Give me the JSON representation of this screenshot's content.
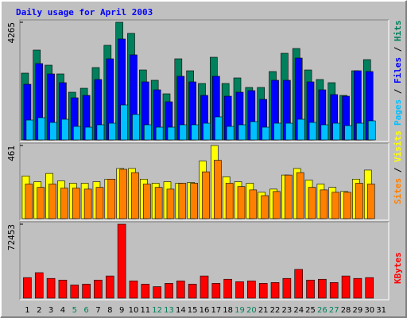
{
  "title": "Daily usage for April 2003",
  "legend_separator": " / ",
  "chart_data": [
    {
      "type": "bar",
      "series": [
        {
          "name": "Hits",
          "color": "#00805c",
          "values": [
            2421,
            3257,
            2709,
            2392,
            1729,
            1873,
            2623,
            3430,
            4265,
            3862,
            2536,
            2162,
            1672,
            2940,
            2507,
            2046,
            2997,
            2046,
            2248,
            1902,
            1902,
            2479,
            3141,
            3314,
            2536,
            2190,
            2075,
            1614,
            2507,
            2911,
            null
          ]
        },
        {
          "name": "Files",
          "color": "#0000ff",
          "values": [
            2017,
            2767,
            2392,
            2075,
            1527,
            1614,
            2190,
            2940,
            3660,
            3084,
            2104,
            1816,
            1383,
            2306,
            2104,
            1614,
            2306,
            1585,
            1729,
            1787,
            1470,
            2162,
            2162,
            2968,
            2104,
            1816,
            1643,
            1585,
            2507,
            2479,
            null
          ]
        },
        {
          "name": "Pages",
          "color": "#00c0ff",
          "values": [
            720,
            807,
            634,
            749,
            490,
            461,
            548,
            605,
            1268,
            922,
            548,
            461,
            461,
            548,
            548,
            605,
            836,
            490,
            548,
            663,
            461,
            605,
            605,
            749,
            634,
            548,
            605,
            519,
            605,
            692,
            null
          ]
        }
      ],
      "ylim": [
        0,
        4265
      ],
      "yticks": [
        4265
      ]
    },
    {
      "type": "bar",
      "series": [
        {
          "name": "Visits",
          "color": "#ffff00",
          "values": [
            269,
            233,
            285,
            238,
            223,
            223,
            233,
            249,
            316,
            316,
            249,
            223,
            233,
            223,
            228,
            363,
            461,
            264,
            233,
            223,
            166,
            186,
            275,
            316,
            243,
            218,
            197,
            171,
            249,
            306,
            null
          ]
        },
        {
          "name": "Sites",
          "color": "#ff8000",
          "values": [
            218,
            197,
            218,
            192,
            192,
            186,
            197,
            249,
            311,
            290,
            218,
            197,
            186,
            223,
            223,
            295,
            368,
            223,
            202,
            181,
            145,
            171,
            275,
            290,
            197,
            181,
            166,
            166,
            223,
            218,
            null
          ]
        }
      ],
      "ylim": [
        0,
        461
      ],
      "yticks": [
        461
      ]
    },
    {
      "type": "bar",
      "categories": [
        "1",
        "2",
        "3",
        "4",
        "5",
        "6",
        "7",
        "8",
        "9",
        "10",
        "11",
        "12",
        "13",
        "14",
        "15",
        "16",
        "17",
        "18",
        "19",
        "20",
        "21",
        "22",
        "23",
        "24",
        "25",
        "26",
        "27",
        "28",
        "29",
        "30",
        "31"
      ],
      "category_colors": [
        "#000000",
        "#000000",
        "#000000",
        "#000000",
        "#00805c",
        "#00805c",
        "#000000",
        "#000000",
        "#000000",
        "#000000",
        "#000000",
        "#00805c",
        "#00805c",
        "#000000",
        "#000000",
        "#000000",
        "#000000",
        "#000000",
        "#00805c",
        "#00805c",
        "#000000",
        "#000000",
        "#000000",
        "#000000",
        "#000000",
        "#00805c",
        "#00805c",
        "#000000",
        "#000000",
        "#000000",
        "#000000"
      ],
      "series": [
        {
          "name": "KBytes",
          "color": "#ff0000",
          "values": [
            20125,
            24955,
            19320,
            17710,
            12880,
            13685,
            17710,
            21735,
            72453,
            16905,
            13685,
            11270,
            14490,
            16905,
            13685,
            21735,
            14490,
            18515,
            16100,
            16905,
            14490,
            15295,
            19320,
            28175,
            17710,
            18515,
            15295,
            21735,
            19320,
            20125,
            null
          ]
        }
      ],
      "ylim": [
        0,
        72453
      ],
      "yticks": [
        72453
      ]
    }
  ]
}
